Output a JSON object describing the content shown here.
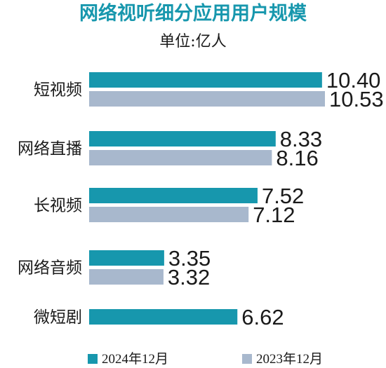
{
  "chart_data": {
    "type": "bar",
    "orientation": "horizontal",
    "title": "网络视听细分应用用户规模",
    "subtitle": "单位:亿人",
    "categories": [
      "短视频",
      "网络直播",
      "长视频",
      "网络音频",
      "微短剧"
    ],
    "series": [
      {
        "name": "2024年12月",
        "values": [
          10.4,
          8.33,
          7.52,
          3.35,
          6.62
        ],
        "color": "#1797ad"
      },
      {
        "name": "2023年12月",
        "values": [
          10.53,
          8.16,
          7.12,
          3.32,
          null
        ],
        "color": "#a8b8cd"
      }
    ],
    "value_labels": [
      [
        "10.40",
        "8.33",
        "7.52",
        "3.35",
        "6.62"
      ],
      [
        "10.53",
        "8.16",
        "7.12",
        "3.32",
        ""
      ]
    ],
    "xlim": [
      0,
      10.53
    ],
    "grid": false,
    "legend_position": "bottom",
    "colors": {
      "title": "#1797ad",
      "text": "#1a1a1a"
    }
  }
}
